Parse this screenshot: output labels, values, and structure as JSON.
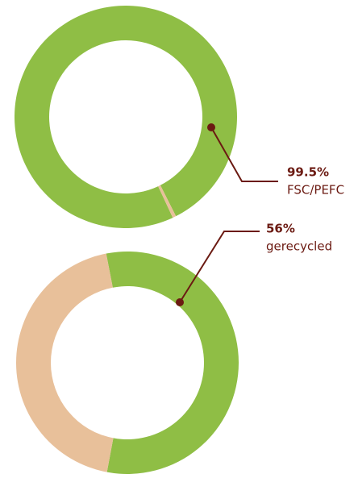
{
  "chart_data": [
    {
      "type": "pie",
      "categories": [
        "FSC/PEFC",
        null
      ],
      "values": [
        99.5,
        0.5
      ],
      "value_labels": [
        "99.5%",
        null
      ],
      "colors": [
        "#8fbe45",
        "#e8c09a"
      ]
    },
    {
      "type": "pie",
      "categories": [
        "gerecycled",
        null
      ],
      "values": [
        56,
        44
      ],
      "value_labels": [
        "56%",
        null
      ],
      "colors": [
        "#8fbe45",
        "#e8c09a"
      ]
    }
  ]
}
